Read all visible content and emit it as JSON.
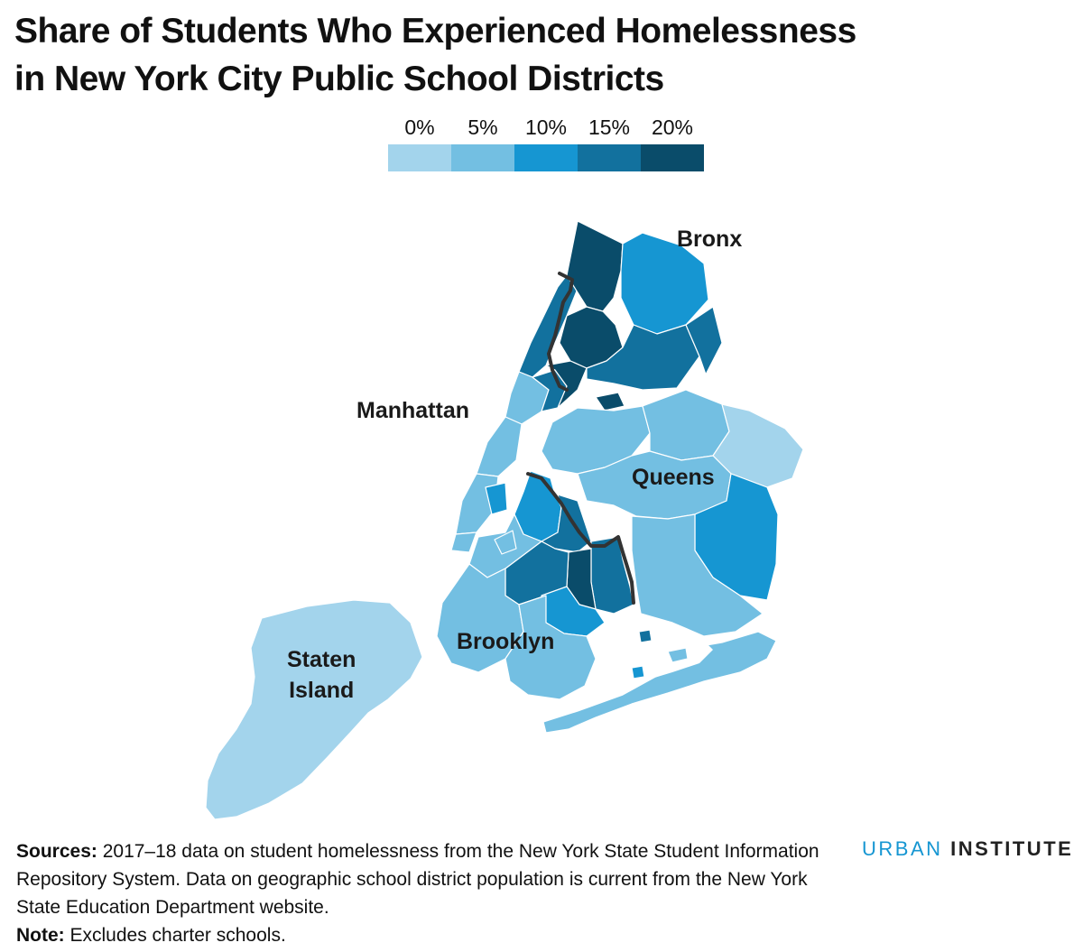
{
  "title": {
    "line1": "Share of Students Who Experienced Homelessness",
    "line2": "in New York City Public School Districts"
  },
  "legend": {
    "ticks": [
      "0%",
      "5%",
      "10%",
      "15%",
      "20%"
    ],
    "colors": [
      "#a3d4ec",
      "#73bfe2",
      "#1696d2",
      "#12719e",
      "#0a4c6a"
    ]
  },
  "borough_labels": {
    "bronx": "Bronx",
    "manhattan": "Manhattan",
    "queens": "Queens",
    "brooklyn": "Brooklyn",
    "staten_island_line1": "Staten",
    "staten_island_line2": "Island"
  },
  "colors": {
    "outline": "#333333",
    "district_border": "#ffffff"
  },
  "footer": {
    "sources_label": "Sources:",
    "sources_text": " 2017–18 data on student homelessness from the New York State Student Information Repository System. Data on geographic school district population is current from the New York State Education Department website.",
    "note_label": "Note:",
    "note_text": " Excludes charter schools."
  },
  "logo": {
    "part1": "URBAN",
    "part2": "INSTITUTE"
  }
}
